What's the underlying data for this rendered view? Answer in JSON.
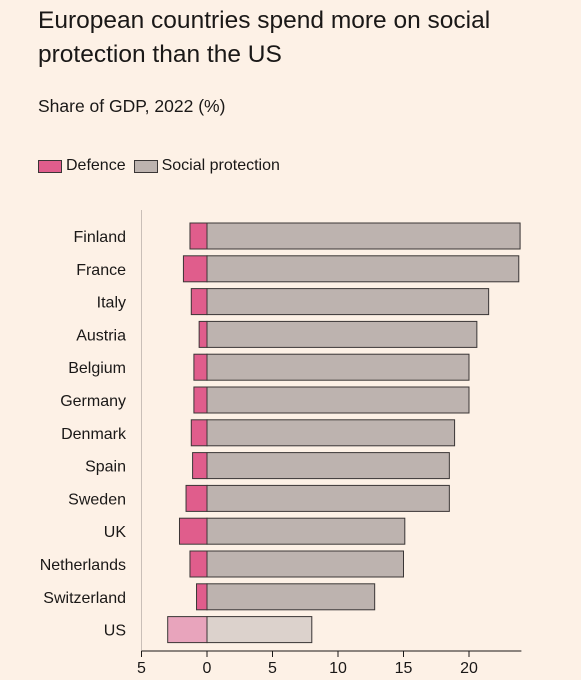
{
  "header": {
    "title": "European countries spend more on social protection than the US",
    "subtitle": "Share of GDP, 2022 (%)"
  },
  "legend": {
    "defence_label": "Defence",
    "social_label": "Social protection"
  },
  "colors": {
    "defence": "#e05d8c",
    "social": "#bdb3af",
    "defence_us": "#e8a4bc",
    "social_us": "#dcd2cc",
    "outline": "#3a3636",
    "background": "#fdf1e6"
  },
  "chart_data": {
    "type": "bar",
    "orientation": "horizontal",
    "title": "European countries spend more on social protection than the US",
    "subtitle": "Share of GDP, 2022 (%)",
    "xlabel": "",
    "ylabel": "",
    "xlim": [
      -5,
      24
    ],
    "xticks": [
      -5,
      0,
      5,
      10,
      15,
      20
    ],
    "xtick_labels": [
      "5",
      "0",
      "5",
      "10",
      "15",
      "20"
    ],
    "grid": false,
    "legend_position": "top-left",
    "categories": [
      "Finland",
      "France",
      "Italy",
      "Austria",
      "Belgium",
      "Germany",
      "Denmark",
      "Spain",
      "Sweden",
      "UK",
      "Netherlands",
      "Switzerland",
      "US"
    ],
    "series": [
      {
        "name": "Defence",
        "values": [
          1.3,
          1.8,
          1.2,
          0.6,
          1.0,
          1.0,
          1.2,
          1.1,
          1.6,
          2.1,
          1.3,
          0.8,
          3.0
        ]
      },
      {
        "name": "Social protection",
        "values": [
          23.9,
          23.8,
          21.5,
          20.6,
          20.0,
          20.0,
          18.9,
          18.5,
          18.5,
          15.1,
          15.0,
          12.8,
          8.0
        ]
      }
    ]
  }
}
